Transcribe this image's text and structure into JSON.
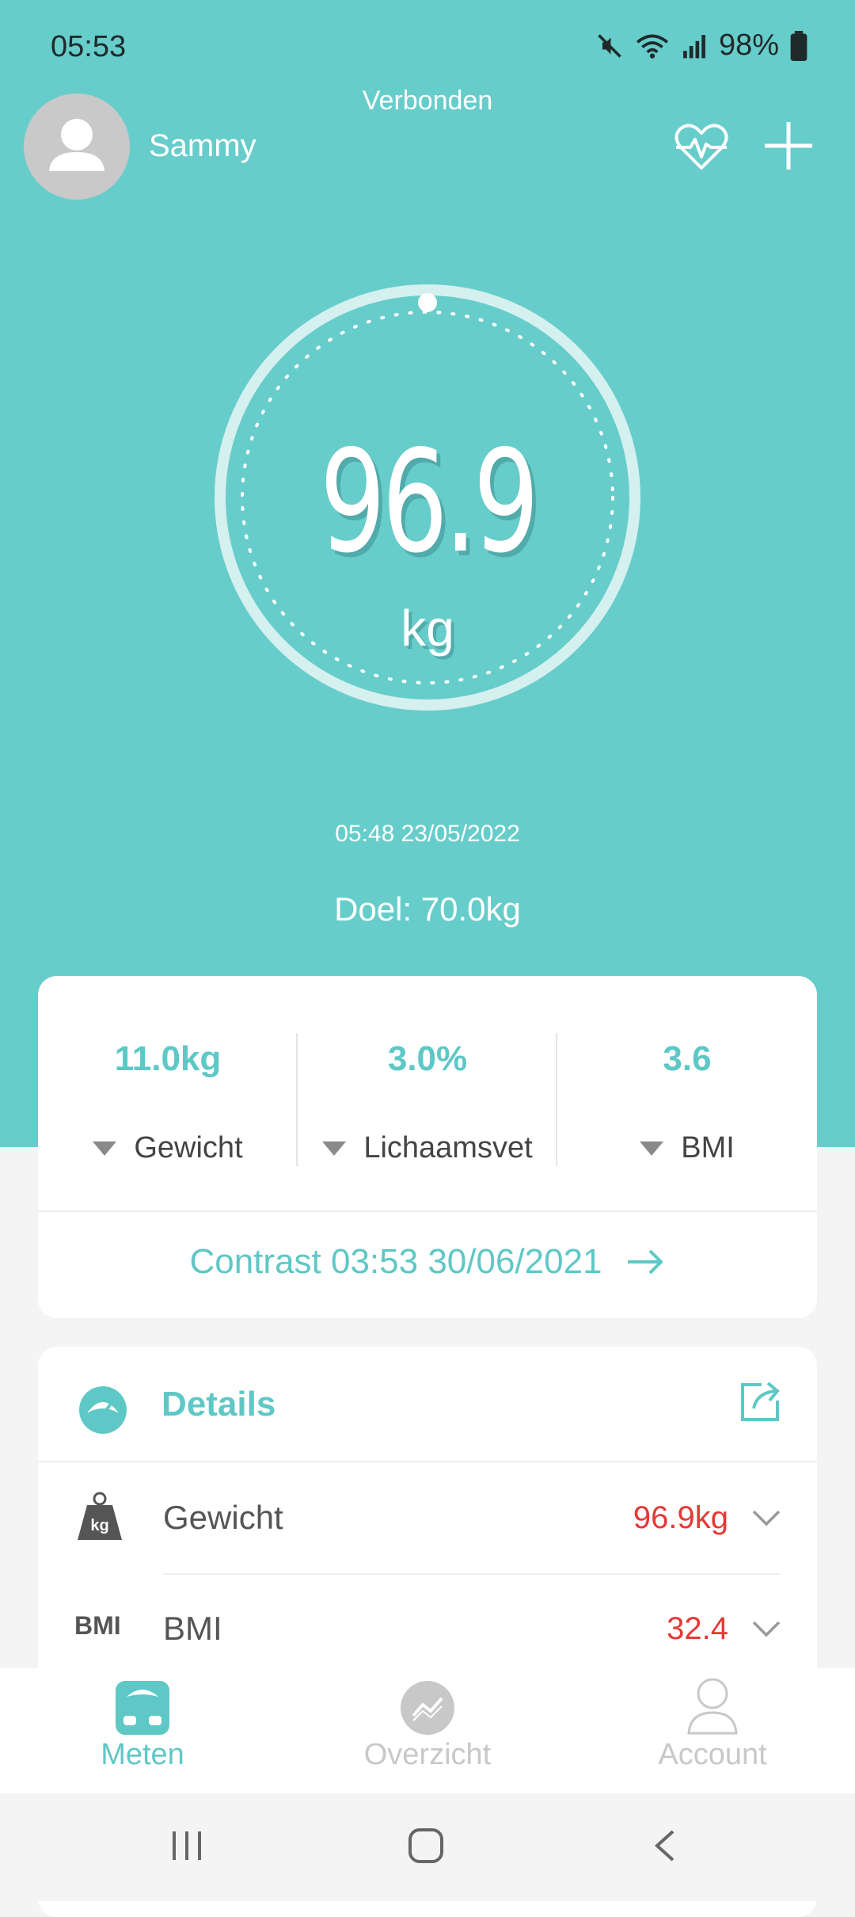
{
  "status_bar": {
    "time": "05:53",
    "battery": "98%",
    "icons": [
      "mute-icon",
      "wifi-icon",
      "signal-icon",
      "battery-icon"
    ]
  },
  "header": {
    "username": "Sammy",
    "connection_status": "Verbonden",
    "icons": [
      "heart-rate-icon",
      "add-icon"
    ]
  },
  "measurement": {
    "weight": "96.9",
    "unit": "kg",
    "timestamp": "05:48 23/05/2022",
    "goal": "Doel: 70.0kg"
  },
  "comparison": {
    "metrics": [
      {
        "value": "11.0kg",
        "label": "Gewicht"
      },
      {
        "value": "3.0%",
        "label": "Lichaamsvet"
      },
      {
        "value": "3.6",
        "label": "BMI"
      }
    ],
    "contrast_label": "Contrast 03:53 30/06/2021"
  },
  "details": {
    "title": "Details",
    "rows": [
      {
        "icon": "kg-weight-icon",
        "label": "Gewicht",
        "value": "96.9kg"
      },
      {
        "icon_text": "BMI",
        "label": "BMI",
        "value": "32.4"
      }
    ]
  },
  "bottom_nav": {
    "items": [
      {
        "label": "Meten",
        "active": true
      },
      {
        "label": "Overzicht",
        "active": false
      },
      {
        "label": "Account",
        "active": false
      }
    ]
  },
  "colors": {
    "primary": "#67cdcb",
    "accent_text": "#5ec8c6",
    "alert": "#e53935",
    "inactive": "#c8c8c8"
  }
}
